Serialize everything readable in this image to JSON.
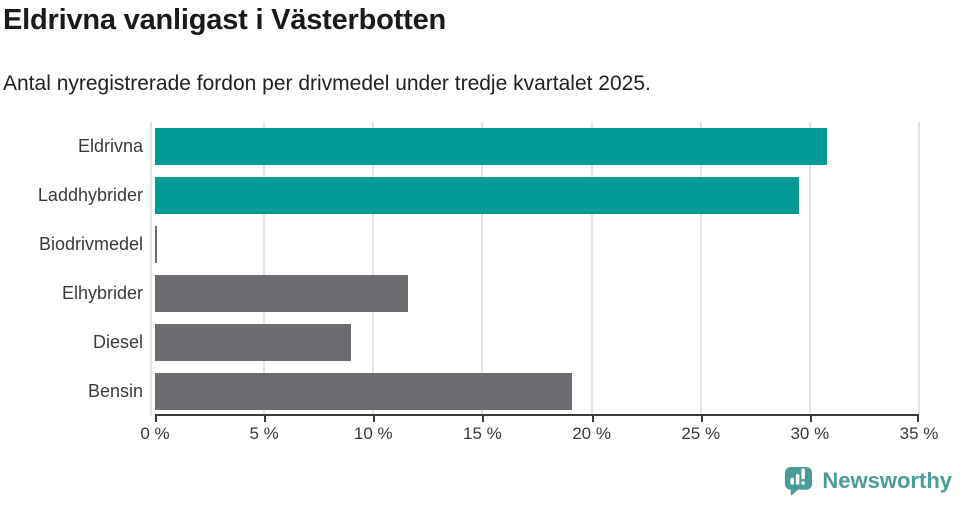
{
  "header": {
    "title": "Eldrivna vanligast i Västerbotten",
    "subtitle": "Antal nyregistrerade fordon per drivmedel under tredje kvartalet 2025."
  },
  "chart_data": {
    "type": "bar",
    "orientation": "horizontal",
    "title": "Eldrivna vanligast i Västerbotten",
    "subtitle": "Antal nyregistrerade fordon per drivmedel under tredje kvartalet 2025.",
    "categories": [
      "Eldrivna",
      "Laddhybrider",
      "Biodrivmedel",
      "Elhybrider",
      "Diesel",
      "Bensin"
    ],
    "values": [
      30.8,
      29.5,
      0.1,
      11.6,
      9.0,
      19.1
    ],
    "unit": "%",
    "xlabel": "",
    "ylabel": "",
    "xlim": [
      0,
      35
    ],
    "x_ticks": [
      0,
      5,
      10,
      15,
      20,
      25,
      30,
      35
    ],
    "x_tick_labels": [
      "0 %",
      "5 %",
      "10 %",
      "15 %",
      "20 %",
      "25 %",
      "30 %",
      "35 %"
    ],
    "bar_colors": [
      "#009b95",
      "#009b95",
      "#6b6b70",
      "#6b6b70",
      "#6b6b70",
      "#6b6b70"
    ],
    "grid": "vertical-only",
    "legend": "none"
  },
  "colors": {
    "accent_teal": "#009b95",
    "neutral_gray": "#6b6b70",
    "gridline": "#e4e4e4",
    "axis": "#3a3a3c",
    "text_dark": "#1a1a1a",
    "logo_teal": "#4a9c96"
  },
  "branding": {
    "logo_text": "Newsworthy",
    "logo_icon": "bar-chart-speech-bubble-icon"
  }
}
